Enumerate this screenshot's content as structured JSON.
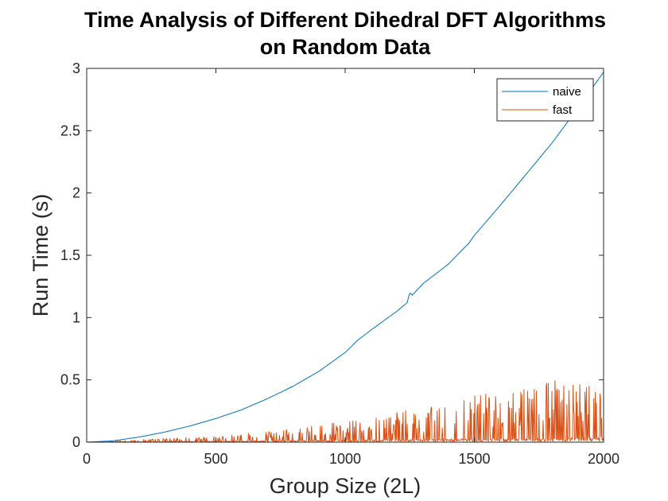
{
  "chart_data": {
    "type": "line",
    "title_lines": [
      "Time Analysis of Different Dihedral DFT Algorithms",
      "on Random Data"
    ],
    "xlabel": "Group Size (2L)",
    "ylabel": "Run Time (s)",
    "xlim": [
      0,
      2000
    ],
    "ylim": [
      0,
      3
    ],
    "xticks": [
      0,
      500,
      1000,
      1500,
      2000
    ],
    "yticks": [
      0,
      0.5,
      1,
      1.5,
      2,
      2.5,
      3
    ],
    "xtick_labels": [
      "0",
      "500",
      "1000",
      "1500",
      "2000"
    ],
    "ytick_labels": [
      "0",
      "0.5",
      "1",
      "1.5",
      "2",
      "2.5",
      "3"
    ],
    "grid": false,
    "legend_position": "top-right",
    "series": [
      {
        "name": "naive",
        "color": "#0072BD",
        "x": [
          0,
          100,
          200,
          300,
          400,
          500,
          600,
          700,
          800,
          900,
          1000,
          1050,
          1100,
          1200,
          1240,
          1250,
          1260,
          1300,
          1400,
          1480,
          1500,
          1600,
          1700,
          1800,
          1900,
          2000
        ],
        "y": [
          0,
          0.01,
          0.04,
          0.08,
          0.13,
          0.19,
          0.26,
          0.35,
          0.45,
          0.57,
          0.72,
          0.82,
          0.9,
          1.05,
          1.12,
          1.2,
          1.18,
          1.27,
          1.43,
          1.6,
          1.66,
          1.9,
          2.15,
          2.4,
          2.68,
          2.97
        ]
      },
      {
        "name": "fast",
        "color": "#D95319",
        "x": [
          0,
          200,
          400,
          600,
          800,
          1000,
          1200,
          1400,
          1600,
          1800,
          2000
        ],
        "y_peak": [
          0,
          0.02,
          0.04,
          0.07,
          0.11,
          0.17,
          0.24,
          0.33,
          0.42,
          0.5,
          0.6
        ],
        "y_base": [
          0,
          0.002,
          0.004,
          0.006,
          0.008,
          0.01,
          0.012,
          0.015,
          0.018,
          0.02,
          0.025
        ]
      }
    ]
  }
}
